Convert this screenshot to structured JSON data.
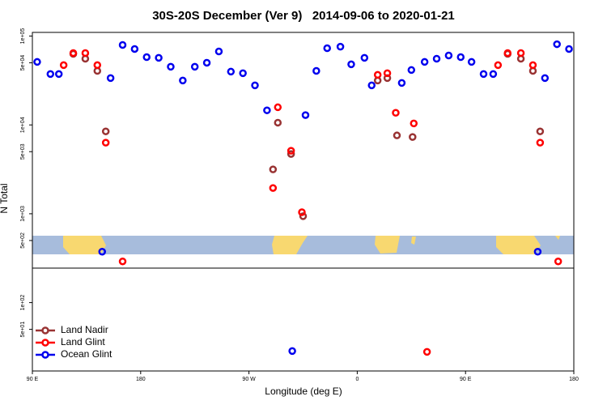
{
  "chart_data": {
    "type": "scatter",
    "title": "30S-20S December (Ver 9)   2014-09-06 to 2020-01-21",
    "x_label": "Longitude (deg E)",
    "y_label": "N Total",
    "xlim": [
      90,
      540
    ],
    "ylim": [
      17,
      110000
    ],
    "log_y": true,
    "legend": "lower left",
    "xticks": [
      {
        "value": 90,
        "label": "90 E"
      },
      {
        "value": 180,
        "label": "180"
      },
      {
        "value": 270,
        "label": "90 W"
      },
      {
        "value": 360,
        "label": "0"
      },
      {
        "value": 450,
        "label": "90 E"
      },
      {
        "value": 540,
        "label": "180"
      }
    ],
    "yticks": [
      {
        "value": 100000,
        "label": "1e+05"
      },
      {
        "value": 50000,
        "label": "5e+04"
      },
      {
        "value": 10000,
        "label": "1e+04"
      },
      {
        "value": 5000,
        "label": "5e+03"
      },
      {
        "value": 1000,
        "label": "1e+03"
      },
      {
        "value": 500,
        "label": "5e+02"
      },
      {
        "value": 100,
        "label": "1e+02"
      },
      {
        "value": 50,
        "label": "5e+01"
      }
    ],
    "series": [
      {
        "name": "Land Nadir",
        "color": "#993333",
        "x": [
          124,
          134,
          144,
          151,
          290,
          294,
          305,
          315,
          377,
          385,
          393,
          406,
          485,
          496,
          506,
          512
        ],
        "values": [
          63100,
          55600,
          40600,
          8460,
          3160,
          10600,
          4710,
          940,
          31600,
          33700,
          7620,
          7310,
          63100,
          55600,
          40600,
          8460
        ]
      },
      {
        "name": "Land Glint",
        "color": "#ff0000",
        "x": [
          116,
          124,
          134,
          144,
          151,
          165,
          290,
          294,
          305,
          314,
          377,
          385,
          392,
          407,
          418,
          477,
          485,
          496,
          506,
          512,
          527
        ],
        "values": [
          47100,
          64400,
          64400,
          47100,
          6310,
          291,
          1950,
          15800,
          5120,
          1040,
          36600,
          38200,
          13700,
          10400,
          27.9,
          47100,
          64400,
          64400,
          47100,
          6310,
          291
        ]
      },
      {
        "name": "Ocean Glint",
        "color": "#0000ee",
        "x": [
          94,
          105,
          112,
          148,
          155,
          165,
          175,
          185,
          195,
          205,
          215,
          225,
          235,
          245,
          255,
          265,
          275,
          285,
          306,
          317,
          326,
          335,
          346,
          355,
          366,
          372,
          397,
          405,
          416,
          426,
          436,
          446,
          455,
          465,
          473,
          510,
          516,
          526,
          536
        ],
        "values": [
          51200,
          37400,
          37400,
          374,
          33700,
          79400,
          71600,
          58000,
          56900,
          45200,
          31600,
          45200,
          50100,
          67200,
          39800,
          38200,
          27900,
          14600,
          28.5,
          12900,
          40600,
          73000,
          76000,
          48100,
          56900,
          27900,
          29700,
          41500,
          51200,
          55600,
          60500,
          58000,
          51200,
          37400,
          37400,
          374,
          33700,
          81000,
          71600
        ]
      }
    ]
  }
}
